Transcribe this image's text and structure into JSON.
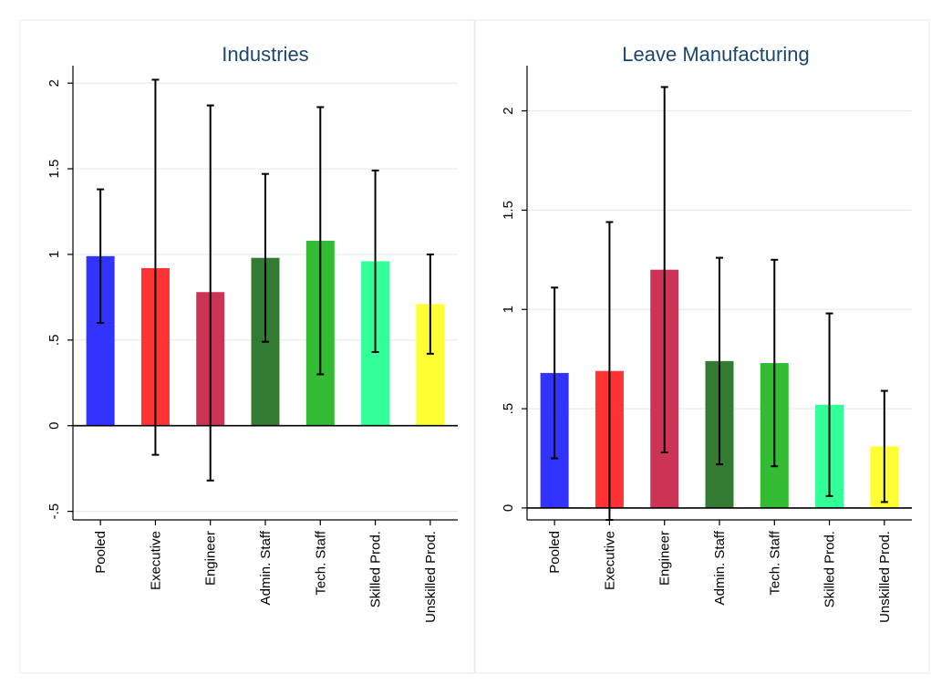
{
  "chart_data": [
    {
      "type": "bar",
      "title": "Industries",
      "xlabel": "",
      "ylabel": "",
      "ylim": [
        -0.55,
        2.07
      ],
      "yticks": [
        -0.5,
        0,
        0.5,
        1,
        1.5,
        2
      ],
      "ytick_labels": [
        "-.5",
        "0",
        ".5",
        "1",
        "1.5",
        "2"
      ],
      "grid": true,
      "categories": [
        "Pooled",
        "Executive",
        "Engineer",
        "Admin. Staff",
        "Tech. Staff",
        "Skilled Prod.",
        "Unskilled Prod."
      ],
      "values": [
        0.99,
        0.92,
        0.78,
        0.98,
        1.08,
        0.96,
        0.71
      ],
      "ci_low": [
        0.6,
        -0.17,
        -0.32,
        0.49,
        0.3,
        0.43,
        0.42
      ],
      "ci_high": [
        1.38,
        2.02,
        1.87,
        1.47,
        1.86,
        1.49,
        1.0
      ],
      "colors": [
        "#3333ff",
        "#ff3333",
        "#cc3355",
        "#337a33",
        "#33bb33",
        "#33ff99",
        "#ffff33"
      ]
    },
    {
      "type": "bar",
      "title": "Leave Manufacturing",
      "xlabel": "",
      "ylabel": "",
      "ylim": [
        -0.06,
        2.2
      ],
      "yticks": [
        0,
        0.5,
        1,
        1.5,
        2
      ],
      "ytick_labels": [
        "0",
        ".5",
        "1",
        "1.5",
        "2"
      ],
      "grid": true,
      "categories": [
        "Pooled",
        "Executive",
        "Engineer",
        "Admin. Staff",
        "Tech. Staff",
        "Skilled Prod.",
        "Unskilled Prod."
      ],
      "values": [
        0.68,
        0.69,
        1.2,
        0.74,
        0.73,
        0.52,
        0.31
      ],
      "ci_low": [
        0.25,
        -0.06,
        0.28,
        0.22,
        0.21,
        0.06,
        0.03
      ],
      "ci_high": [
        1.11,
        1.44,
        2.12,
        1.26,
        1.25,
        0.98,
        0.59
      ],
      "colors": [
        "#3333ff",
        "#ff3333",
        "#cc3355",
        "#337a33",
        "#33bb33",
        "#33ff99",
        "#ffff33"
      ]
    }
  ]
}
